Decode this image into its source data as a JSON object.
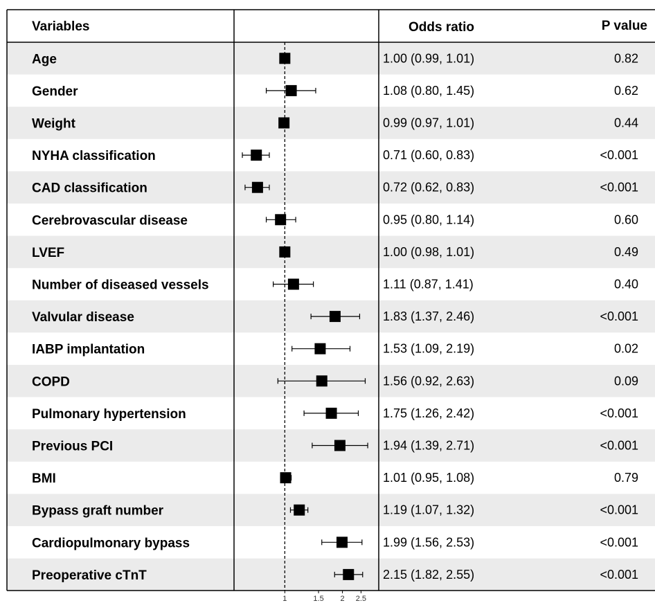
{
  "headers": {
    "variables": "Variables",
    "odds_ratio": "Odds ratio",
    "p_value": "P value"
  },
  "colors": {
    "stripe": "#ebebeb",
    "marker": "#000000",
    "line": "#000000"
  },
  "chart_data": {
    "type": "forest",
    "xscale": "log",
    "reference_line": 1,
    "xticks": [
      "1",
      "1.5",
      "2",
      "2.5"
    ],
    "xtick_values": [
      1,
      1.5,
      2,
      2.5
    ],
    "xlim": [
      0.6,
      2.8
    ],
    "rows": [
      {
        "variable": "Age",
        "or": 1.0,
        "lower": 0.99,
        "upper": 1.01,
        "or_text": "1.00 (0.99, 1.01)",
        "p": "0.82"
      },
      {
        "variable": "Gender",
        "or": 1.08,
        "lower": 0.8,
        "upper": 1.45,
        "or_text": "1.08 (0.80, 1.45)",
        "p": "0.62"
      },
      {
        "variable": "Weight",
        "or": 0.99,
        "lower": 0.97,
        "upper": 1.01,
        "or_text": "0.99 (0.97, 1.01)",
        "p": "0.44"
      },
      {
        "variable": "NYHA classification",
        "or": 0.71,
        "lower": 0.6,
        "upper": 0.83,
        "or_text": "0.71 (0.60, 0.83)",
        "p": "<0.001"
      },
      {
        "variable": "CAD classification",
        "or": 0.72,
        "lower": 0.62,
        "upper": 0.83,
        "or_text": "0.72 (0.62, 0.83)",
        "p": "<0.001"
      },
      {
        "variable": "Cerebrovascular disease",
        "or": 0.95,
        "lower": 0.8,
        "upper": 1.14,
        "or_text": "0.95 (0.80, 1.14)",
        "p": "0.60"
      },
      {
        "variable": "LVEF",
        "or": 1.0,
        "lower": 0.98,
        "upper": 1.01,
        "or_text": "1.00 (0.98, 1.01)",
        "p": "0.49"
      },
      {
        "variable": "Number of diseased vessels",
        "or": 1.11,
        "lower": 0.87,
        "upper": 1.41,
        "or_text": "1.11 (0.87, 1.41)",
        "p": "0.40"
      },
      {
        "variable": "Valvular disease",
        "or": 1.83,
        "lower": 1.37,
        "upper": 2.46,
        "or_text": "1.83 (1.37, 2.46)",
        "p": "<0.001"
      },
      {
        "variable": "IABP implantation",
        "or": 1.53,
        "lower": 1.09,
        "upper": 2.19,
        "or_text": "1.53 (1.09, 2.19)",
        "p": "0.02"
      },
      {
        "variable": "COPD",
        "or": 1.56,
        "lower": 0.92,
        "upper": 2.63,
        "or_text": "1.56 (0.92, 2.63)",
        "p": "0.09"
      },
      {
        "variable": "Pulmonary hypertension",
        "or": 1.75,
        "lower": 1.26,
        "upper": 2.42,
        "or_text": "1.75 (1.26, 2.42)",
        "p": "<0.001"
      },
      {
        "variable": "Previous PCI",
        "or": 1.94,
        "lower": 1.39,
        "upper": 2.71,
        "or_text": "1.94 (1.39, 2.71)",
        "p": "<0.001"
      },
      {
        "variable": "BMI",
        "or": 1.01,
        "lower": 0.95,
        "upper": 1.08,
        "or_text": "1.01 (0.95, 1.08)",
        "p": "0.79"
      },
      {
        "variable": "Bypass graft number",
        "or": 1.19,
        "lower": 1.07,
        "upper": 1.32,
        "or_text": "1.19 (1.07, 1.32)",
        "p": "<0.001"
      },
      {
        "variable": "Cardiopulmonary bypass",
        "or": 1.99,
        "lower": 1.56,
        "upper": 2.53,
        "or_text": "1.99 (1.56, 2.53)",
        "p": "<0.001"
      },
      {
        "variable": "Preoperative cTnT",
        "or": 2.15,
        "lower": 1.82,
        "upper": 2.55,
        "or_text": "2.15 (1.82, 2.55)",
        "p": "<0.001"
      }
    ]
  }
}
